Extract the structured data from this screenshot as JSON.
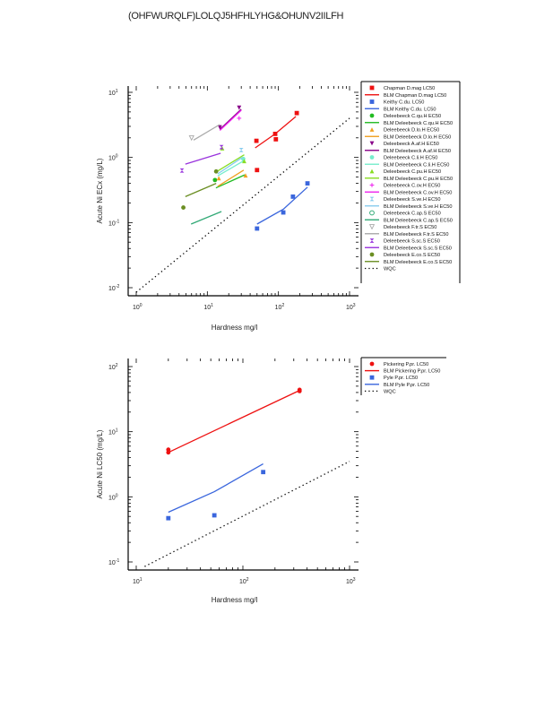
{
  "page": {
    "title": "(OHFWURQLF)LOLQJ5HFHLYHG&OHUNV2IILFH"
  },
  "chart_data": [
    {
      "type": "scatter",
      "xscale": "log",
      "yscale": "log",
      "xlabel": "Hardness mg/l",
      "ylabel": "Acute Ni ECx (mg/L)",
      "xlim": [
        1,
        1000
      ],
      "ylim": [
        0.01,
        10
      ],
      "xticks": [
        {
          "v": 1,
          "label": "10",
          "exp": "0"
        },
        {
          "v": 10,
          "label": "10",
          "exp": "1"
        },
        {
          "v": 100,
          "label": "10",
          "exp": "2"
        },
        {
          "v": 1000,
          "label": "10",
          "exp": "3"
        }
      ],
      "yticks": [
        {
          "v": 0.01,
          "label": "10",
          "exp": "-2"
        },
        {
          "v": 0.1,
          "label": "10",
          "exp": "-1"
        },
        {
          "v": 1,
          "label": "10",
          "exp": "0"
        },
        {
          "v": 10,
          "label": "10",
          "exp": "1"
        }
      ],
      "legend_position": "right-outside",
      "series": [
        {
          "name": "Chapman D.mag LC50",
          "kind": "points",
          "marker": "square",
          "color": "#ee1111",
          "points": [
            [
              49,
              1.8
            ],
            [
              90,
              2.3
            ],
            [
              92,
              1.9
            ],
            [
              181,
              4.8
            ],
            [
              50,
              0.64
            ]
          ]
        },
        {
          "name": "BLM Chapman D.mag LC50",
          "kind": "line",
          "color": "#ee1111",
          "points": [
            [
              47,
              1.4
            ],
            [
              90,
              2.3
            ],
            [
              176,
              4.25
            ]
          ]
        },
        {
          "name": "Keithy C.du. LC50",
          "kind": "points",
          "marker": "square",
          "color": "#3a66dd",
          "points": [
            [
              50,
              0.081
            ],
            [
              117,
              0.143
            ],
            [
              160,
              0.25
            ],
            [
              256,
              0.4
            ]
          ]
        },
        {
          "name": "BLM Keithy C.du. LC50",
          "kind": "line",
          "color": "#3a66dd",
          "points": [
            [
              50,
              0.095
            ],
            [
              117,
              0.16
            ],
            [
              256,
              0.35
            ]
          ]
        },
        {
          "name": "Deleebeeck C.qu.H EC50",
          "kind": "points",
          "marker": "circle",
          "color": "#22bb22",
          "points": [
            [
              12.8,
              0.45
            ]
          ]
        },
        {
          "name": "BLM Deleebeeck C.qu.H EC50",
          "kind": "line",
          "color": "#22bb22",
          "points": [
            [
              13.2,
              0.34
            ],
            [
              33.5,
              0.54
            ]
          ]
        },
        {
          "name": "Deleebeeck D.lo.H EC50",
          "kind": "points",
          "marker": "triangle",
          "color": "#f0a020",
          "points": [
            [
              14.5,
              0.48
            ],
            [
              34.5,
              0.53
            ]
          ]
        },
        {
          "name": "BLM Deleebeeck D.lo.H EC50",
          "kind": "line",
          "color": "#f0a020",
          "points": [
            [
              14,
              0.36
            ],
            [
              32.5,
              0.64
            ]
          ]
        },
        {
          "name": "Deleebeeck A.af.H EC50",
          "kind": "points",
          "marker": "triangle-down",
          "color": "#880088",
          "points": [
            [
              15,
              2.9
            ],
            [
              28,
              5.8
            ]
          ]
        },
        {
          "name": "BLM Deleebeeck A.af.H EC50",
          "kind": "line",
          "color": "#880088",
          "points": [
            [
              15,
              2.7
            ],
            [
              30,
              5.5
            ]
          ]
        },
        {
          "name": "Deleebeeck C.li.H EC50",
          "kind": "points",
          "marker": "circle",
          "color": "#77eecc",
          "points": [
            [
              32,
              0.95
            ]
          ]
        },
        {
          "name": "BLM Deleebeeck C.li.H EC50",
          "kind": "line",
          "color": "#77eecc",
          "points": [
            [
              14,
              0.52
            ],
            [
              32,
              0.88
            ]
          ]
        },
        {
          "name": "Deleebeeck C.pu.H EC50",
          "kind": "points",
          "marker": "triangle",
          "color": "#88dd22",
          "points": [
            [
              16.2,
              1.38
            ],
            [
              33,
              0.88
            ]
          ]
        },
        {
          "name": "BLM Deleebeeck C.pu.H EC50",
          "kind": "line",
          "color": "#88dd22",
          "points": [
            [
              14,
              0.62
            ],
            [
              33,
              1.1
            ]
          ]
        },
        {
          "name": "Deleebeeck C.ov.H EC50",
          "kind": "points",
          "marker": "plus",
          "color": "#ee22ee",
          "points": [
            [
              28,
              4.0
            ]
          ]
        },
        {
          "name": "BLM Deleebeeck C.ov.H EC50",
          "kind": "line",
          "color": "#ee22ee",
          "points": [
            [
              15,
              2.6
            ],
            [
              30,
              5.3
            ]
          ]
        },
        {
          "name": "Deleebeeck S.ve.H EC50",
          "kind": "points",
          "marker": "bowtie",
          "color": "#88ccee",
          "points": [
            [
              30,
              1.3
            ]
          ]
        },
        {
          "name": "BLM Deleebeeck S.ve.H EC50",
          "kind": "line",
          "color": "#88ccee",
          "points": [
            [
              14,
              0.56
            ],
            [
              31,
              1.0
            ]
          ]
        },
        {
          "name": "Deleebeeck C.ap.S EC50",
          "kind": "points",
          "marker": "circle-open",
          "color": "#33aa77",
          "points": []
        },
        {
          "name": "BLM Deleebeeck C.ap.S EC50",
          "kind": "line",
          "color": "#33aa77",
          "points": [
            [
              5.9,
              0.095
            ],
            [
              15.8,
              0.148
            ]
          ]
        },
        {
          "name": "Deleebeeck F.tr.S EC50",
          "kind": "points",
          "marker": "triangle-down-open",
          "color": "#aaaaaa",
          "points": [
            [
              6.0,
              2.0
            ]
          ]
        },
        {
          "name": "BLM Deleebeeck F.tr.S EC50",
          "kind": "line",
          "color": "#aaaaaa",
          "points": [
            [
              6.4,
              1.85
            ],
            [
              14.9,
              3.2
            ]
          ]
        },
        {
          "name": "Deleebeeck S.sc.S EC50",
          "kind": "points",
          "marker": "bowtie",
          "color": "#9933dd",
          "points": [
            [
              4.4,
              0.63
            ],
            [
              15.8,
              1.44
            ]
          ]
        },
        {
          "name": "BLM Deleebeeck S.sc.S EC50",
          "kind": "line",
          "color": "#9933dd",
          "points": [
            [
              4.9,
              0.79
            ],
            [
              15.4,
              1.16
            ]
          ]
        },
        {
          "name": "Deleebeeck E.co.S EC50",
          "kind": "points",
          "marker": "circle",
          "color": "#6b8e23",
          "points": [
            [
              4.6,
              0.17
            ],
            [
              13.3,
              0.61
            ]
          ]
        },
        {
          "name": "BLM Deleebeeck E.co.S EC50",
          "kind": "line",
          "color": "#6b8e23",
          "points": [
            [
              4.9,
              0.25
            ],
            [
              13.3,
              0.4
            ]
          ]
        },
        {
          "name": "WQC",
          "kind": "dotted",
          "color": "#000000",
          "points": [
            [
              1,
              0.0085
            ],
            [
              1000,
              4.0
            ]
          ]
        }
      ]
    },
    {
      "type": "scatter",
      "xscale": "log",
      "yscale": "log",
      "xlabel": "Hardness mg/l",
      "ylabel": "Acute Ni LC50 (mg/L)",
      "xlim": [
        10,
        1000
      ],
      "ylim": [
        0.1,
        100
      ],
      "xticks": [
        {
          "v": 10,
          "label": "10",
          "exp": "1"
        },
        {
          "v": 100,
          "label": "10",
          "exp": "2"
        },
        {
          "v": 1000,
          "label": "10",
          "exp": "3"
        }
      ],
      "yticks": [
        {
          "v": 0.1,
          "label": "10",
          "exp": "-1"
        },
        {
          "v": 1,
          "label": "10",
          "exp": "0"
        },
        {
          "v": 10,
          "label": "10",
          "exp": "1"
        },
        {
          "v": 100,
          "label": "10",
          "exp": "2"
        }
      ],
      "legend_position": "right-outside",
      "series": [
        {
          "name": "Pickering P.pr. LC50",
          "kind": "points",
          "marker": "circle",
          "color": "#ee1111",
          "points": [
            [
              20,
              5.3
            ],
            [
              20,
              4.8
            ],
            [
              340,
              44
            ],
            [
              340,
              42
            ]
          ]
        },
        {
          "name": "BLM Pickering P.pr. LC50",
          "kind": "line",
          "color": "#ee1111",
          "points": [
            [
              20,
              4.8
            ],
            [
              340,
              43
            ]
          ]
        },
        {
          "name": "Pyle P.pr. LC50",
          "kind": "points",
          "marker": "square",
          "color": "#3a66dd",
          "points": [
            [
              20,
              0.47
            ],
            [
              54,
              0.52
            ],
            [
              155,
              2.4
            ]
          ]
        },
        {
          "name": "BLM Pyle P.pr. LC50",
          "kind": "line",
          "color": "#3a66dd",
          "points": [
            [
              20,
              0.58
            ],
            [
              54,
              1.2
            ],
            [
              155,
              3.2
            ]
          ]
        },
        {
          "name": "WQC",
          "kind": "dotted",
          "color": "#000000",
          "points": [
            [
              12,
              0.085
            ],
            [
              1000,
              3.5
            ]
          ]
        }
      ]
    }
  ]
}
